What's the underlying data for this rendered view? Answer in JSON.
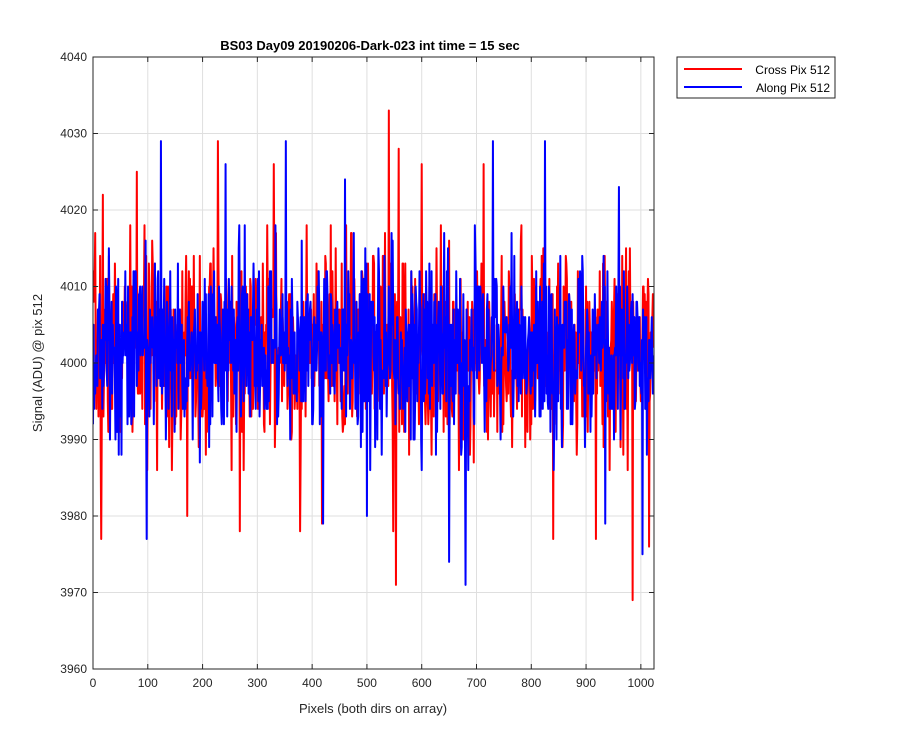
{
  "chart_data": {
    "type": "line",
    "title": "BS03 Day09 20190206-Dark-023 int time = 15 sec",
    "xlabel": "Pixels (both dirs on array)",
    "ylabel": "Signal (ADU) @ pix 512",
    "xlim": [
      0,
      1024
    ],
    "ylim": [
      3960,
      4040
    ],
    "xticks": [
      0,
      100,
      200,
      300,
      400,
      500,
      600,
      700,
      800,
      900,
      1000
    ],
    "yticks": [
      3960,
      3970,
      3980,
      3990,
      4000,
      4010,
      4020,
      4030,
      4040
    ],
    "grid": true,
    "legend_position": "outside-top-right",
    "noise_description": "Dense noise around ~4002 ADU; 1024 samples per series. Notable extremes listed below.",
    "series": [
      {
        "name": "Cross Pix 512",
        "color": "#ff0000",
        "mean": 4002,
        "std": 6.5,
        "seed": 7,
        "extremes": [
          [
            15,
            3977
          ],
          [
            18,
            4022
          ],
          [
            80,
            4025
          ],
          [
            172,
            4029
          ],
          [
            172,
            3980
          ],
          [
            228,
            4029
          ],
          [
            268,
            3978
          ],
          [
            330,
            4026
          ],
          [
            378,
            3978
          ],
          [
            418,
            3979
          ],
          [
            540,
            4033
          ],
          [
            548,
            3978
          ],
          [
            553,
            3971
          ],
          [
            558,
            4028
          ],
          [
            600,
            4026
          ],
          [
            713,
            4026
          ],
          [
            840,
            3977
          ],
          [
            918,
            3977
          ],
          [
            985,
            3969
          ],
          [
            1015,
            3976
          ]
        ]
      },
      {
        "name": "Along Pix 512",
        "color": "#0000ff",
        "mean": 4002,
        "std": 6.0,
        "seed": 13,
        "extremes": [
          [
            98,
            3977
          ],
          [
            124,
            4029
          ],
          [
            242,
            4026
          ],
          [
            352,
            4029
          ],
          [
            420,
            3979
          ],
          [
            460,
            4024
          ],
          [
            500,
            3980
          ],
          [
            650,
            3974
          ],
          [
            680,
            3971
          ],
          [
            730,
            4029
          ],
          [
            825,
            4029
          ],
          [
            935,
            3979
          ],
          [
            960,
            4023
          ],
          [
            1003,
            3975
          ]
        ]
      }
    ]
  }
}
